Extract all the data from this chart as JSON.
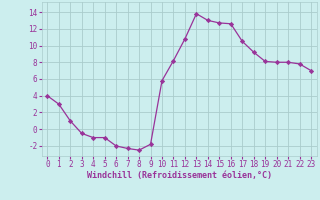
{
  "x": [
    0,
    1,
    2,
    3,
    4,
    5,
    6,
    7,
    8,
    9,
    10,
    11,
    12,
    13,
    14,
    15,
    16,
    17,
    18,
    19,
    20,
    21,
    22,
    23
  ],
  "y": [
    4.0,
    3.0,
    1.0,
    -0.5,
    -1.0,
    -1.0,
    -2.0,
    -2.3,
    -2.5,
    -1.8,
    5.8,
    8.2,
    10.8,
    13.8,
    13.0,
    12.7,
    12.6,
    10.5,
    9.2,
    8.1,
    8.0,
    8.0,
    7.8,
    7.0
  ],
  "line_color": "#993399",
  "marker": "D",
  "marker_size": 2.2,
  "bg_color": "#cceeee",
  "grid_color": "#aacccc",
  "xlabel": "Windchill (Refroidissement éolien,°C)",
  "xlabel_color": "#993399",
  "tick_color": "#993399",
  "xlim": [
    -0.5,
    23.5
  ],
  "ylim": [
    -3.2,
    15.2
  ],
  "yticks": [
    -2,
    0,
    2,
    4,
    6,
    8,
    10,
    12,
    14
  ],
  "xticks": [
    0,
    1,
    2,
    3,
    4,
    5,
    6,
    7,
    8,
    9,
    10,
    11,
    12,
    13,
    14,
    15,
    16,
    17,
    18,
    19,
    20,
    21,
    22,
    23
  ],
  "tick_fontsize": 5.5,
  "xlabel_fontsize": 6.0
}
